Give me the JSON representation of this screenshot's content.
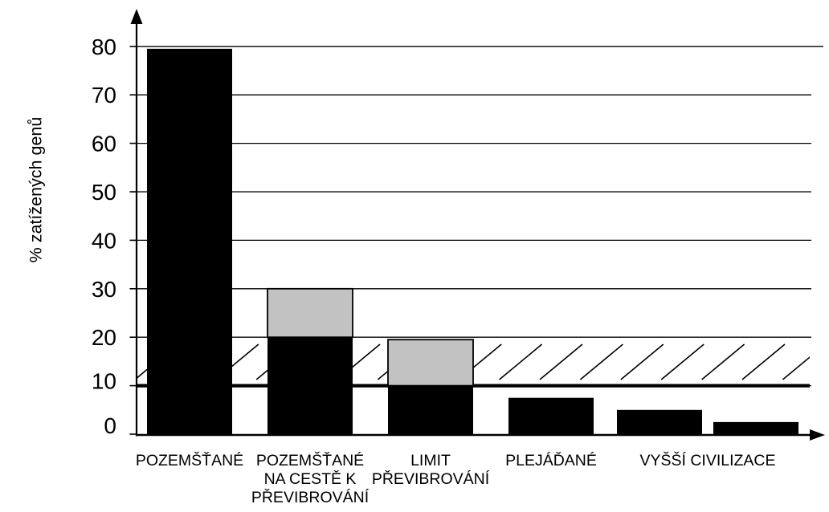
{
  "figure": {
    "background": "#ffffff"
  },
  "colors": {
    "axis": "#000000",
    "grid": "#000000",
    "bar_base": "#000000",
    "bar_top": "#c2c2c2",
    "text": "#000000"
  },
  "chart_data": {
    "type": "bar",
    "stacked": true,
    "title": "",
    "xlabel": "",
    "ylabel": "% zatížených genů",
    "ylim": [
      0,
      80
    ],
    "yticks": [
      0,
      10,
      20,
      30,
      40,
      50,
      60,
      70,
      80
    ],
    "grid": "horizontal",
    "legend": "none",
    "categories": [
      "POZEMŠŤANÉ",
      "POZEMŠŤANÉ NA CESTĚ K PŘEVIBROVÁNÍ",
      "LIMIT PŘEVIBROVÁNÍ",
      "PLEJÁĎANÉ",
      "VYŠŠÍ CIVILIZACE",
      ""
    ],
    "category_label_lines": [
      [
        "POZEMŠŤANÉ"
      ],
      [
        "POZEMŠŤANÉ",
        "NA CESTĚ K",
        "PŘEVIBROVÁNÍ"
      ],
      [
        "LIMIT",
        "PŘEVIBROVÁNÍ"
      ],
      [
        "PLEJÁĎANÉ"
      ],
      [
        "VYŠŠÍ CIVILIZACE"
      ],
      []
    ],
    "series": [
      {
        "name": "black",
        "color": "#000000",
        "values": [
          79.5,
          20,
          10,
          7.5,
          5,
          2.5
        ]
      },
      {
        "name": "gray",
        "color": "#c2c2c2",
        "values": [
          0,
          10,
          9.5,
          0,
          0,
          0
        ]
      }
    ],
    "stack_totals": [
      79.5,
      30,
      19.5,
      7.5,
      5,
      2.5
    ],
    "annotations": {
      "threshold_line": {
        "value": 10,
        "style": "thick-black-horizontal"
      },
      "hatch_band": {
        "from": 10,
        "to": 20,
        "pattern": "forward-slash-diagonals"
      }
    },
    "layout_hints": {
      "legend": "none",
      "y_axis_arrow": true,
      "x_axis_arrow": true,
      "last_label_spans_bars": [
        4,
        5
      ]
    }
  }
}
